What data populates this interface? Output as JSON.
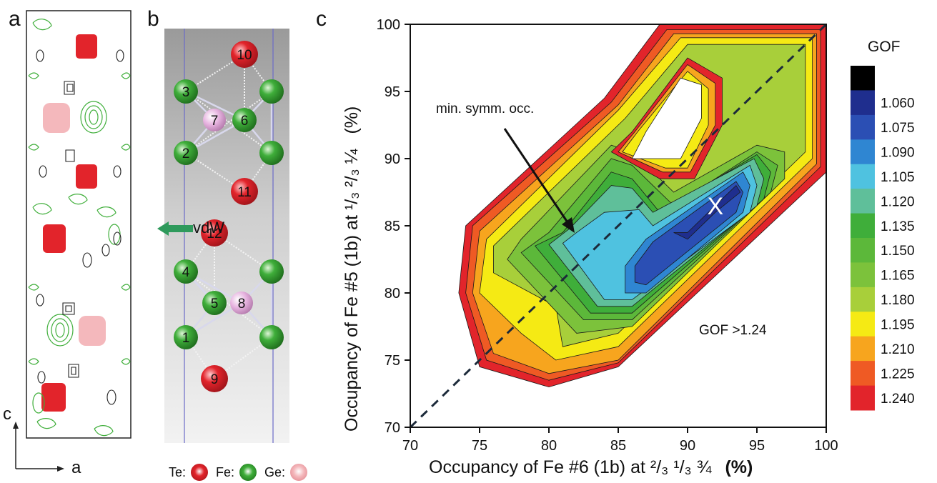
{
  "panels": {
    "a": {
      "letter": "a",
      "axis_c": "c",
      "axis_a": "a"
    },
    "b": {
      "letter": "b",
      "vdw_label": "vdW",
      "atom_numbers": [
        "10",
        "3",
        "7",
        "6",
        "2",
        "11",
        "12",
        "4",
        "5",
        "8",
        "1",
        "9"
      ]
    },
    "legend_atoms": [
      {
        "label": "Te:",
        "color": "#e2242b"
      },
      {
        "label": "Fe:",
        "color": "#3fae3a"
      },
      {
        "label": "Ge:",
        "color": "#f4b8bc"
      }
    ]
  },
  "chart_data": {
    "type": "heatmap",
    "panel_letter": "c",
    "xlabel": "Occupancy of Fe #6 (1b) at ²/₃ ¹/₃ ¾",
    "xlabel_unit": "(%)",
    "ylabel": "Occupancy of Fe #5 (1b) at ¹/₃ ²/₃ ¼",
    "ylabel_unit": "(%)",
    "xlim": [
      70,
      100
    ],
    "ylim": [
      70,
      100
    ],
    "x_ticks": [
      70,
      75,
      80,
      85,
      90,
      95,
      100
    ],
    "y_ticks": [
      70,
      75,
      80,
      85,
      90,
      95,
      100
    ],
    "colorbar_title": "GOF",
    "colorbar_levels": [
      {
        "label": "",
        "color": "#000000"
      },
      {
        "label": "1.060",
        "color": "#1f2e8e"
      },
      {
        "label": "1.075",
        "color": "#2b4fb4"
      },
      {
        "label": "1.090",
        "color": "#2f86d2"
      },
      {
        "label": "1.105",
        "color": "#4fc2e0"
      },
      {
        "label": "1.120",
        "color": "#5fbf9a"
      },
      {
        "label": "1.135",
        "color": "#3fae3a"
      },
      {
        "label": "1.150",
        "color": "#5cb83a"
      },
      {
        "label": "1.165",
        "color": "#7cc23b"
      },
      {
        "label": "1.180",
        "color": "#a8cf3a"
      },
      {
        "label": "1.195",
        "color": "#f5ea14"
      },
      {
        "label": "1.210",
        "color": "#f7a51e"
      },
      {
        "label": "1.225",
        "color": "#ef5a24"
      },
      {
        "label": "1.240",
        "color": "#e2242b"
      }
    ],
    "annotations": {
      "arrow_label": "min. symm. occ.",
      "minimum_marker": "X",
      "minimum_point": [
        92,
        86.5
      ],
      "outside_label": "GOF >1.24",
      "symmetry_line": [
        [
          70,
          70
        ],
        [
          100,
          100
        ]
      ]
    },
    "contour_regions": [
      {
        "level": "1.240",
        "points": [
          [
            73.5,
            80
          ],
          [
            74,
            85
          ],
          [
            84,
            94.5
          ],
          [
            88,
            100
          ],
          [
            100,
            100
          ],
          [
            100,
            89
          ],
          [
            85,
            74.5
          ],
          [
            80,
            73
          ],
          [
            75,
            74.5
          ]
        ]
      },
      {
        "level": "1.225",
        "points": [
          [
            74,
            80
          ],
          [
            74.5,
            85
          ],
          [
            84.5,
            94.2
          ],
          [
            88.5,
            99.6
          ],
          [
            99.6,
            99.6
          ],
          [
            99.6,
            89.4
          ],
          [
            85,
            74.8
          ],
          [
            80,
            73.5
          ],
          [
            75.5,
            75
          ]
        ]
      },
      {
        "level": "1.210",
        "points": [
          [
            74.5,
            80
          ],
          [
            75,
            84.6
          ],
          [
            85,
            94
          ],
          [
            89,
            99.3
          ],
          [
            99.3,
            99.3
          ],
          [
            99.3,
            89.6
          ],
          [
            85,
            75
          ],
          [
            80,
            74
          ],
          [
            76,
            75.5
          ]
        ]
      },
      {
        "level": "1.195",
        "points": [
          [
            75,
            80
          ],
          [
            75.5,
            84
          ],
          [
            85,
            93.6
          ],
          [
            89.5,
            99
          ],
          [
            99,
            99
          ],
          [
            99,
            90
          ],
          [
            85,
            76
          ],
          [
            80.5,
            75
          ],
          [
            78,
            77
          ]
        ]
      },
      {
        "level": "1.180",
        "points": [
          [
            76,
            81.5
          ],
          [
            76,
            83.5
          ],
          [
            85.5,
            93
          ],
          [
            90,
            98.5
          ],
          [
            98.5,
            98.5
          ],
          [
            98.5,
            90.5
          ],
          [
            85,
            77
          ],
          [
            81,
            76
          ],
          [
            80.5,
            79
          ]
        ]
      },
      {
        "level": "1.165",
        "points": [
          [
            77,
            82.5
          ],
          [
            78,
            84
          ],
          [
            84.5,
            91
          ],
          [
            86,
            90.5
          ],
          [
            89,
            87.5
          ],
          [
            95,
            91
          ],
          [
            97,
            90.5
          ],
          [
            97,
            88.5
          ],
          [
            86,
            77.5
          ],
          [
            82,
            77
          ]
        ]
      },
      {
        "level": "1.150",
        "points": [
          [
            78,
            83
          ],
          [
            80,
            84.5
          ],
          [
            84.5,
            90
          ],
          [
            86,
            89.5
          ],
          [
            89,
            86.5
          ],
          [
            95,
            90.5
          ],
          [
            96.5,
            89.5
          ],
          [
            96,
            87.5
          ],
          [
            86,
            78
          ],
          [
            82.5,
            78
          ]
        ]
      },
      {
        "level": "1.135",
        "points": [
          [
            79,
            83.5
          ],
          [
            81,
            84.5
          ],
          [
            84.5,
            89
          ],
          [
            86,
            88.5
          ],
          [
            88,
            86
          ],
          [
            95,
            90.3
          ],
          [
            96,
            89
          ],
          [
            95.5,
            87
          ],
          [
            86,
            78.5
          ],
          [
            83,
            78.5
          ]
        ]
      },
      {
        "level": "1.120",
        "points": [
          [
            80,
            83.6
          ],
          [
            81.5,
            84.8
          ],
          [
            84.5,
            88
          ],
          [
            86,
            87.8
          ],
          [
            87.5,
            86
          ],
          [
            94.8,
            90
          ],
          [
            95.5,
            88.5
          ],
          [
            95,
            86.5
          ],
          [
            86,
            79
          ],
          [
            83.5,
            79
          ]
        ]
      },
      {
        "level": "1.105",
        "points": [
          [
            81,
            83.7
          ],
          [
            82,
            84.5
          ],
          [
            84,
            86
          ],
          [
            86.5,
            86.2
          ],
          [
            87.5,
            85
          ],
          [
            94.5,
            89.5
          ],
          [
            95,
            88
          ],
          [
            94.5,
            86
          ],
          [
            86,
            79.5
          ],
          [
            84,
            79.5
          ]
        ]
      },
      {
        "level": "1.090",
        "points": [
          [
            85.5,
            82
          ],
          [
            87,
            84
          ],
          [
            94,
            89
          ],
          [
            94.5,
            88
          ],
          [
            94,
            86
          ],
          [
            87,
            80
          ],
          [
            85.5,
            80
          ]
        ]
      },
      {
        "level": "1.075",
        "points": [
          [
            86.2,
            82
          ],
          [
            87.5,
            83.8
          ],
          [
            93.5,
            88.3
          ],
          [
            94,
            87.5
          ],
          [
            93.5,
            86
          ],
          [
            87,
            80.6
          ],
          [
            86.2,
            80.8
          ]
        ]
      },
      {
        "level": "1.060",
        "points": [
          [
            89,
            84.5
          ],
          [
            90,
            84.5
          ],
          [
            93.5,
            88
          ],
          [
            93.8,
            87.5
          ],
          [
            92,
            86
          ],
          [
            90,
            84
          ]
        ]
      },
      {
        "level": "hole_red",
        "points": [
          [
            84.5,
            90.5
          ],
          [
            88,
            88.5
          ],
          [
            90.5,
            88.5
          ],
          [
            92.5,
            92.5
          ],
          [
            92.5,
            96
          ],
          [
            90,
            97.5
          ],
          [
            86,
            92
          ]
        ]
      },
      {
        "level": "hole_orange",
        "points": [
          [
            85,
            90.5
          ],
          [
            88.2,
            89
          ],
          [
            90.2,
            89
          ],
          [
            92,
            92.5
          ],
          [
            92,
            95.6
          ],
          [
            90,
            97
          ],
          [
            86.2,
            92
          ]
        ]
      },
      {
        "level": "hole_yellow",
        "points": [
          [
            85.3,
            90.5
          ],
          [
            88.4,
            89.3
          ],
          [
            90,
            89.3
          ],
          [
            91.5,
            92.5
          ],
          [
            91.5,
            95.2
          ],
          [
            90,
            96.5
          ],
          [
            86.4,
            92
          ]
        ]
      },
      {
        "level": "hole_white",
        "points": [
          [
            86,
            90
          ],
          [
            89.5,
            90
          ],
          [
            91,
            93
          ],
          [
            91,
            95.5
          ],
          [
            89.5,
            96
          ],
          [
            87,
            92
          ]
        ]
      }
    ]
  }
}
